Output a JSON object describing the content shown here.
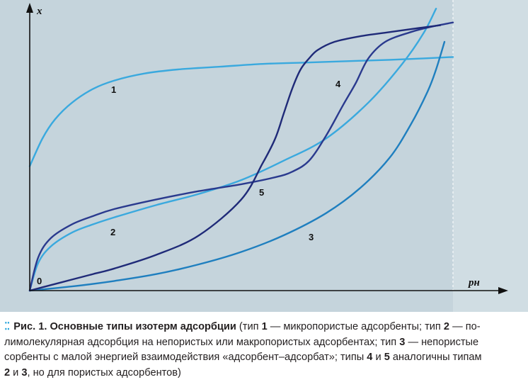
{
  "chart_data": {
    "type": "line",
    "title": "",
    "ylabel": "x",
    "xlabel": "pн",
    "origin_label": "0",
    "xlim": [
      0,
      1
    ],
    "ylim": [
      0,
      1
    ],
    "grid": false,
    "colors": {
      "background": "#c5d4dc",
      "light_band": "#d0dde3",
      "axis": "#111111",
      "light_blue": "#3aa9de",
      "mid_blue": "#1f7fbf",
      "dark_navy": "#1f2a78",
      "navy": "#2a3a8e"
    },
    "series": [
      {
        "name": "1",
        "color": "#3aa9de",
        "x": [
          0,
          0.03,
          0.06,
          0.1,
          0.15,
          0.2,
          0.27,
          0.35,
          0.45,
          0.55,
          0.65,
          0.75,
          0.85,
          0.93,
          1.0
        ],
        "y": [
          0.45,
          0.55,
          0.62,
          0.68,
          0.73,
          0.76,
          0.785,
          0.8,
          0.81,
          0.82,
          0.825,
          0.83,
          0.835,
          0.84,
          0.845
        ]
      },
      {
        "name": "2",
        "color": "#3aa9de",
        "x": [
          0,
          0.02,
          0.05,
          0.1,
          0.15,
          0.2,
          0.3,
          0.4,
          0.5,
          0.6,
          0.7,
          0.8,
          0.88,
          0.93,
          0.96
        ],
        "y": [
          0,
          0.1,
          0.16,
          0.21,
          0.24,
          0.265,
          0.31,
          0.35,
          0.4,
          0.47,
          0.55,
          0.68,
          0.82,
          0.93,
          1.02
        ]
      },
      {
        "name": "3",
        "color": "#1f7fbf",
        "x": [
          0,
          0.1,
          0.2,
          0.3,
          0.4,
          0.5,
          0.6,
          0.7,
          0.78,
          0.85,
          0.9,
          0.94,
          0.96,
          0.98
        ],
        "y": [
          0,
          0.015,
          0.035,
          0.06,
          0.095,
          0.14,
          0.2,
          0.28,
          0.37,
          0.48,
          0.6,
          0.72,
          0.8,
          0.9
        ]
      },
      {
        "name": "4",
        "color": "#2a3a8e",
        "x": [
          0,
          0.02,
          0.05,
          0.1,
          0.15,
          0.2,
          0.3,
          0.4,
          0.5,
          0.58,
          0.62,
          0.66,
          0.7,
          0.74,
          0.77,
          0.8,
          0.84,
          0.9,
          0.95,
          1.0
        ],
        "y": [
          0,
          0.12,
          0.19,
          0.24,
          0.27,
          0.295,
          0.33,
          0.36,
          0.385,
          0.41,
          0.43,
          0.47,
          0.56,
          0.67,
          0.75,
          0.84,
          0.9,
          0.935,
          0.955,
          0.97
        ]
      },
      {
        "name": "5",
        "color": "#1f2a78",
        "x": [
          0,
          0.05,
          0.1,
          0.15,
          0.2,
          0.3,
          0.4,
          0.5,
          0.55,
          0.58,
          0.6,
          0.62,
          0.64,
          0.66,
          0.68,
          0.72,
          0.78,
          0.85,
          0.92,
          0.97
        ],
        "y": [
          0,
          0.02,
          0.04,
          0.06,
          0.08,
          0.13,
          0.2,
          0.33,
          0.46,
          0.55,
          0.64,
          0.73,
          0.8,
          0.84,
          0.87,
          0.9,
          0.92,
          0.935,
          0.95,
          0.96
        ]
      }
    ]
  },
  "caption": {
    "fig": "Рис. 1.",
    "title": "Основные типы изотерм адсорбции",
    "t0": " (тип ",
    "n1": "1",
    "t1": " — микропористые адсорбенты; тип ",
    "n2": "2",
    "t2": " — по-",
    "line2": "лимолекулярная адсорбция на непористых или макропористых адсорбентах; тип ",
    "n3": "3",
    "t3": " — непористые",
    "line3": "сорбенты с малой энергией взаимодействия «адсорбент–адсорбат»; типы ",
    "n4": "4",
    "t4": " и ",
    "n5": "5",
    "t5": " аналогичны типам",
    "n2b": "2",
    "t6": " и ",
    "n3b": "3",
    "t7": ", но для пористых адсорбентов)"
  }
}
